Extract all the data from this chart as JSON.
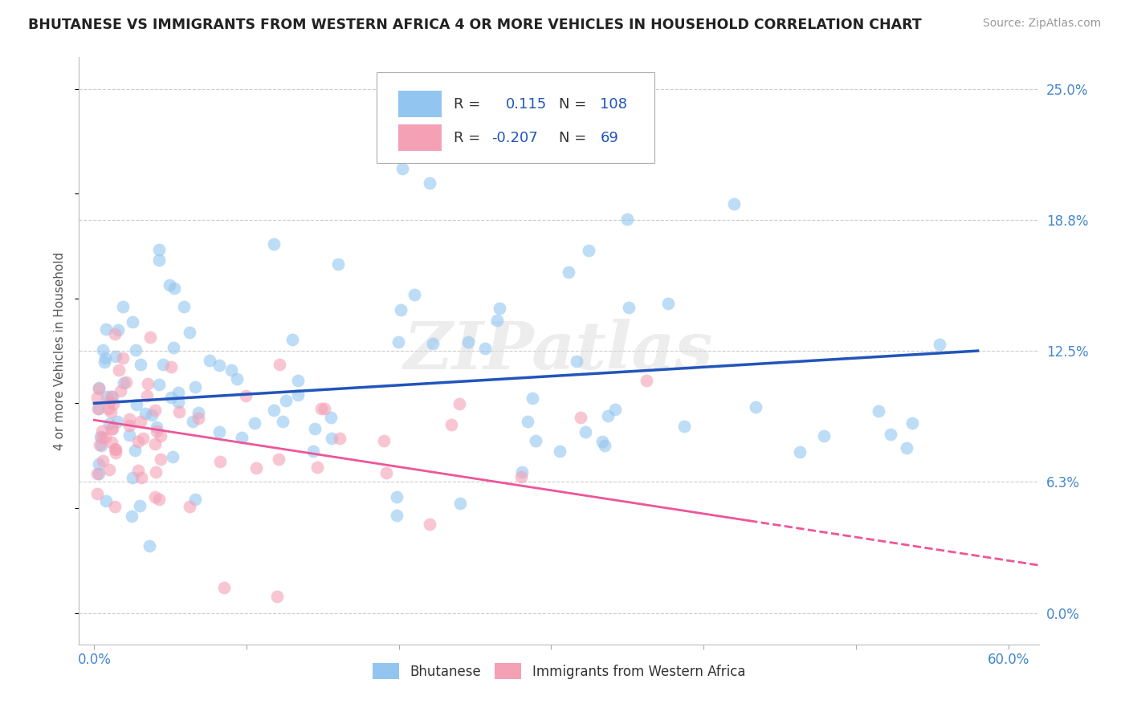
{
  "title": "BHUTANESE VS IMMIGRANTS FROM WESTERN AFRICA 4 OR MORE VEHICLES IN HOUSEHOLD CORRELATION CHART",
  "source": "Source: ZipAtlas.com",
  "ylabel": "4 or more Vehicles in Household",
  "xlim": [
    -1.0,
    62.0
  ],
  "ylim": [
    -1.5,
    26.5
  ],
  "xticks": [
    0.0,
    10.0,
    20.0,
    30.0,
    40.0,
    50.0,
    60.0
  ],
  "xticklabels": [
    "0.0%",
    "",
    "",
    "",
    "",
    "",
    "60.0%"
  ],
  "yticks": [
    0.0,
    6.25,
    12.5,
    18.75,
    25.0
  ],
  "yticklabels_right": [
    "0.0%",
    "6.3%",
    "12.5%",
    "18.8%",
    "25.0%"
  ],
  "blue_color": "#92C5F0",
  "pink_color": "#F4A0B5",
  "blue_line_color": "#2255BB",
  "pink_line_color": "#EE5599",
  "R_blue": 0.115,
  "N_blue": 108,
  "R_pink": -0.207,
  "N_pink": 69,
  "legend_label_blue": "Bhutanese",
  "legend_label_pink": "Immigrants from Western Africa",
  "watermark": "ZIPatlas",
  "blue_trend_x0": 0.0,
  "blue_trend_y0": 10.0,
  "blue_trend_x1": 58.0,
  "blue_trend_y1": 12.5,
  "pink_trend_x0": 0.0,
  "pink_trend_y0": 9.2,
  "pink_trend_x1": 60.0,
  "pink_trend_y1": 2.5,
  "pink_solid_end": 43.0,
  "pink_dash_end": 62.0
}
